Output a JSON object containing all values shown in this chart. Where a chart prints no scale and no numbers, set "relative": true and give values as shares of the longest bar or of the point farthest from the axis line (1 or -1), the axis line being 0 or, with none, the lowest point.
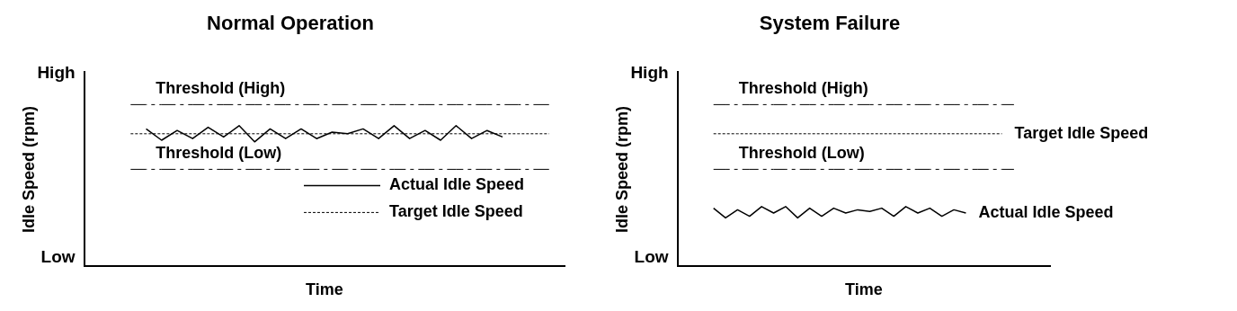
{
  "chart_data": [
    {
      "type": "line",
      "title": "Normal Operation",
      "xlabel": "Time",
      "ylabel": "Idle Speed (rpm)",
      "annotations": [
        "High",
        "Low"
      ],
      "categories": [
        null,
        null,
        null,
        null,
        null,
        null,
        null,
        null,
        null,
        null,
        null,
        null,
        null,
        null,
        null,
        null,
        null,
        null,
        null,
        null,
        null,
        null,
        null,
        null,
        null,
        null,
        null,
        null,
        null,
        null,
        null,
        null
      ],
      "relative": true,
      "grid": false,
      "marker": "none",
      "legend": "bottom right",
      "series": [
        {
          "name": "Threshold (High)",
          "color": "#000000",
          "line_style": "dashed",
          "values": [
            null,
            null,
            null,
            1,
            1,
            1,
            1,
            1,
            1,
            1,
            1,
            1,
            1,
            1,
            1,
            1,
            1,
            1,
            1,
            1,
            1,
            1,
            1,
            1,
            1,
            1,
            1,
            1,
            1,
            1,
            1,
            null
          ]
        },
        {
          "name": "Actual Idle Speed",
          "color": "#000000",
          "line_style": "solid",
          "values": [
            null,
            null,
            null,
            null,
            0.85,
            0.78,
            0.84,
            0.79,
            0.86,
            0.8,
            0.87,
            0.77,
            0.85,
            0.79,
            0.85,
            0.79,
            0.83,
            0.82,
            0.85,
            0.79,
            0.87,
            0.79,
            0.84,
            0.78,
            0.87,
            0.79,
            0.84,
            0.8,
            null,
            null,
            null,
            null
          ]
        },
        {
          "name": "Target Idle Speed",
          "color": "#000000",
          "line_style": "dotted",
          "values": [
            null,
            null,
            null,
            0.82,
            0.82,
            0.82,
            0.82,
            0.82,
            0.82,
            0.82,
            0.82,
            0.82,
            0.82,
            0.82,
            0.82,
            0.82,
            0.82,
            0.82,
            0.82,
            0.82,
            0.82,
            0.82,
            0.82,
            0.82,
            0.82,
            0.82,
            0.82,
            0.82,
            0.82,
            0.82,
            0.82,
            null
          ]
        },
        {
          "name": "Threshold (Low)",
          "color": "#000000",
          "line_style": "dashed",
          "values": [
            null,
            null,
            null,
            0.6,
            0.6,
            0.6,
            0.6,
            0.6,
            0.6,
            0.6,
            0.6,
            0.6,
            0.6,
            0.6,
            0.6,
            0.6,
            0.6,
            0.6,
            0.6,
            0.6,
            0.6,
            0.6,
            0.6,
            0.6,
            0.6,
            0.6,
            0.6,
            0.6,
            0.6,
            0.6,
            0.6,
            null
          ]
        }
      ]
    },
    {
      "type": "line",
      "title": "System Failure",
      "xlabel": "Time",
      "ylabel": "Idle Speed (rpm)",
      "annotations": [
        "High",
        "Low"
      ],
      "categories": [
        null,
        null,
        null,
        null,
        null,
        null,
        null,
        null,
        null,
        null,
        null,
        null,
        null,
        null,
        null,
        null,
        null,
        null,
        null,
        null,
        null,
        null,
        null,
        null,
        null,
        null,
        null,
        null,
        null,
        null,
        null,
        null
      ],
      "relative": true,
      "grid": false,
      "marker": "none",
      "legend": false,
      "series": [
        {
          "name": "Threshold (High)",
          "color": "#000000",
          "line_style": "dashed",
          "values": [
            null,
            null,
            null,
            1,
            1,
            1,
            1,
            1,
            1,
            1,
            1,
            1,
            1,
            1,
            1,
            1,
            1,
            1,
            1,
            1,
            1,
            1,
            1,
            1,
            1,
            1,
            1,
            1,
            1,
            null,
            null,
            null
          ]
        },
        {
          "name": "Target Idle Speed",
          "color": "#000000",
          "line_style": "dotted",
          "values": [
            null,
            null,
            null,
            0.82,
            0.82,
            0.82,
            0.82,
            0.82,
            0.82,
            0.82,
            0.82,
            0.82,
            0.82,
            0.82,
            0.82,
            0.82,
            0.82,
            0.82,
            0.82,
            0.82,
            0.82,
            0.82,
            0.82,
            0.82,
            0.82,
            0.82,
            0.82,
            0.82,
            null,
            null,
            null,
            null
          ]
        },
        {
          "name": "Threshold (Low)",
          "color": "#000000",
          "line_style": "dashed",
          "values": [
            null,
            null,
            null,
            0.6,
            0.6,
            0.6,
            0.6,
            0.6,
            0.6,
            0.6,
            0.6,
            0.6,
            0.6,
            0.6,
            0.6,
            0.6,
            0.6,
            0.6,
            0.6,
            0.6,
            0.6,
            0.6,
            0.6,
            0.6,
            0.6,
            0.6,
            0.6,
            0.6,
            0.6,
            null,
            null,
            null
          ]
        },
        {
          "name": "Actual Idle Speed",
          "color": "#000000",
          "line_style": "solid",
          "values": [
            null,
            null,
            null,
            0.36,
            0.3,
            0.35,
            0.31,
            0.37,
            0.33,
            0.37,
            0.3,
            0.36,
            0.31,
            0.36,
            0.33,
            0.35,
            0.34,
            0.36,
            0.31,
            0.37,
            0.33,
            0.36,
            0.31,
            0.35,
            0.33,
            null,
            null,
            null,
            null,
            null,
            null,
            null
          ]
        }
      ]
    }
  ]
}
